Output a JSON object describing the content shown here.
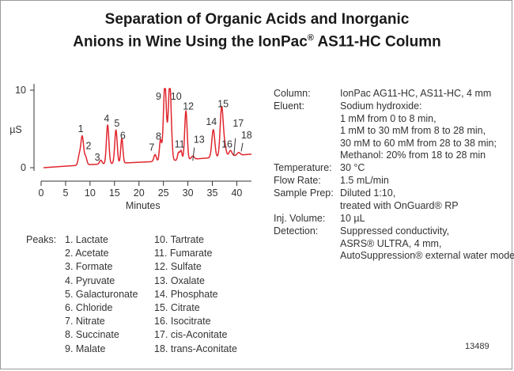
{
  "title_line1": "Separation of Organic Acids and Inorganic",
  "title_line2_pre": "Anions in Wine Using the IonPac",
  "title_line2_reg": "®",
  "title_line2_post": " AS11-HC Column",
  "chart_data": {
    "type": "line",
    "xlabel": "Minutes",
    "ylabel": "µS",
    "xlim": [
      0,
      43
    ],
    "ylim": [
      -0.5,
      10.5
    ],
    "xticks": [
      0,
      5,
      10,
      15,
      20,
      25,
      30,
      35,
      40
    ],
    "yticks": [
      0,
      10
    ],
    "line_color": "#e0262e",
    "baseline": [
      [
        0.5,
        0.0
      ],
      [
        5,
        0.2
      ],
      [
        10,
        0.4
      ],
      [
        15,
        0.55
      ],
      [
        20,
        0.7
      ],
      [
        25,
        0.85
      ],
      [
        30,
        1.05
      ],
      [
        35,
        1.3
      ],
      [
        40,
        1.6
      ],
      [
        43,
        1.75
      ]
    ],
    "peaks": [
      {
        "label": "1",
        "time": 8.4,
        "height": 3.7,
        "width": 0.28
      },
      {
        "label": "1",
        "time": 7.8,
        "height": 1.2,
        "width": 0.25
      },
      {
        "label": "2",
        "time": 9.1,
        "height": 1.0,
        "width": 0.25
      },
      {
        "label": "3",
        "time": 12.2,
        "height": 0.5,
        "width": 0.25
      },
      {
        "label": "4",
        "time": 13.6,
        "height": 5.0,
        "width": 0.25
      },
      {
        "label": "5",
        "time": 15.3,
        "height": 4.3,
        "width": 0.25
      },
      {
        "label": "6",
        "time": 16.5,
        "height": 3.2,
        "width": 0.22
      },
      {
        "label": "7",
        "time": 23.3,
        "height": 0.9,
        "width": 0.25
      },
      {
        "label": "8",
        "time": 24.4,
        "height": 2.7,
        "width": 0.22
      },
      {
        "label": "9",
        "time": 25.3,
        "height": 10.0,
        "width": 0.3
      },
      {
        "label": "10",
        "time": 26.3,
        "height": 10.0,
        "width": 0.3
      },
      {
        "label": "11",
        "time": 28.1,
        "height": 1.0,
        "width": 0.2
      },
      {
        "label": "11",
        "time": 28.6,
        "height": 1.2,
        "width": 0.2
      },
      {
        "label": "12",
        "time": 29.6,
        "height": 6.3,
        "width": 0.25
      },
      {
        "label": "13",
        "time": 31.0,
        "height": 0.4,
        "width": 0.3
      },
      {
        "label": "14",
        "time": 35.2,
        "height": 3.6,
        "width": 0.3
      },
      {
        "label": "15",
        "time": 36.9,
        "height": 6.3,
        "width": 0.3
      },
      {
        "label": "16",
        "time": 37.5,
        "height": 1.4,
        "width": 0.3
      },
      {
        "label": "17",
        "time": 38.7,
        "height": 0.7,
        "width": 0.3
      },
      {
        "label": "18",
        "time": 40.4,
        "height": 0.35,
        "width": 0.3
      }
    ],
    "peak_labels": [
      {
        "text": "1",
        "time": 8.1,
        "y": 4.6
      },
      {
        "text": "2",
        "time": 9.7,
        "y": 2.4
      },
      {
        "text": "3",
        "time": 11.5,
        "y": 0.9
      },
      {
        "text": "4",
        "time": 13.4,
        "y": 5.9
      },
      {
        "text": "5",
        "time": 15.5,
        "y": 5.3
      },
      {
        "text": "6",
        "time": 16.7,
        "y": 3.7
      },
      {
        "text": "7",
        "time": 22.6,
        "y": 2.2
      },
      {
        "text": "8",
        "time": 24.0,
        "y": 3.6
      },
      {
        "text": "9",
        "time": 24.0,
        "y": 8.8
      },
      {
        "text": "10",
        "time": 27.6,
        "y": 8.8
      },
      {
        "text": "11",
        "time": 28.3,
        "y": 2.6
      },
      {
        "text": "12",
        "time": 30.1,
        "y": 7.5
      },
      {
        "text": "13",
        "time": 32.3,
        "y": 3.2
      },
      {
        "text": "14",
        "time": 34.8,
        "y": 5.5
      },
      {
        "text": "15",
        "time": 37.2,
        "y": 7.8
      },
      {
        "text": "16",
        "time": 38.0,
        "y": 2.6
      },
      {
        "text": "17",
        "time": 40.3,
        "y": 5.3
      },
      {
        "text": "18",
        "time": 42.0,
        "y": 3.8
      }
    ],
    "label_leaders": [
      {
        "time": 31.0,
        "y1": 0.9,
        "y2": 2.6
      },
      {
        "time": 39.4,
        "y1": 1.6,
        "y2": 3.8
      },
      {
        "time": 40.9,
        "y1": 2.1,
        "y2": 3.2
      }
    ]
  },
  "peaks_heading": "Peaks:",
  "peaks_list": [
    "1. Lactate",
    "2. Acetate",
    "3. Formate",
    "4. Pyruvate",
    "5. Galacturonate",
    "6. Chloride",
    "7. Nitrate",
    "8. Succinate",
    "9. Malate",
    "10. Tartrate",
    "11. Fumarate",
    "12. Sulfate",
    "13. Oxalate",
    "14. Phosphate",
    "15. Citrate",
    "16. Isocitrate",
    "17. cis-Aconitate",
    "18. trans-Aconitate"
  ],
  "conditions": [
    {
      "label": "Column:",
      "lines": [
        "IonPac AG11-HC, AS11-HC, 4 mm"
      ]
    },
    {
      "label": "Eluent:",
      "lines": [
        "Sodium hydroxide:",
        "1 mM from 0 to 8 min,",
        "1 mM to 30 mM from 8 to 28 min,",
        "30 mM to 60 mM from 28 to 38 min;",
        "Methanol:  20% from 18 to 28 min"
      ]
    },
    {
      "label": "Temperature:",
      "lines": [
        "30 °C"
      ]
    },
    {
      "label": "Flow Rate:",
      "lines": [
        "1.5 mL/min"
      ]
    },
    {
      "label": "Sample Prep:",
      "lines": [
        "Diluted 1:10,",
        "treated with OnGuard® RP"
      ]
    },
    {
      "label": "Inj. Volume:",
      "lines": [
        "10 µL"
      ]
    },
    {
      "label": "Detection:",
      "lines": [
        "Suppressed conductivity,",
        "ASRS® ULTRA, 4 mm,",
        "AutoSuppression® external water mode"
      ]
    }
  ],
  "doc_number": "13489"
}
